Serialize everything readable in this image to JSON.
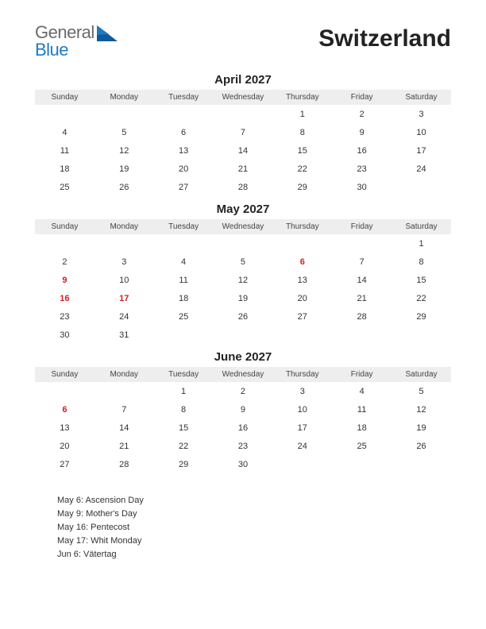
{
  "logo": {
    "word1": "General",
    "word2": "Blue"
  },
  "country_title": "Switzerland",
  "day_headers": [
    "Sunday",
    "Monday",
    "Tuesday",
    "Wednesday",
    "Thursday",
    "Friday",
    "Saturday"
  ],
  "colors": {
    "logo_gray": "#6a6a6a",
    "logo_blue": "#1a7bc4",
    "logo_triangle": "#0d5a9c",
    "header_bg": "#eeeeee",
    "text": "#333333",
    "holiday": "#d02020",
    "background": "#ffffff"
  },
  "typography": {
    "country_fontsize": 30,
    "month_fontsize": 15,
    "day_header_fontsize": 10,
    "cell_fontsize": 11,
    "holiday_list_fontsize": 11
  },
  "months": [
    {
      "title": "April 2027",
      "weeks": [
        [
          null,
          null,
          null,
          null,
          {
            "d": 1
          },
          {
            "d": 2
          },
          {
            "d": 3
          }
        ],
        [
          {
            "d": 4
          },
          {
            "d": 5
          },
          {
            "d": 6
          },
          {
            "d": 7
          },
          {
            "d": 8
          },
          {
            "d": 9
          },
          {
            "d": 10
          }
        ],
        [
          {
            "d": 11
          },
          {
            "d": 12
          },
          {
            "d": 13
          },
          {
            "d": 14
          },
          {
            "d": 15
          },
          {
            "d": 16
          },
          {
            "d": 17
          }
        ],
        [
          {
            "d": 18
          },
          {
            "d": 19
          },
          {
            "d": 20
          },
          {
            "d": 21
          },
          {
            "d": 22
          },
          {
            "d": 23
          },
          {
            "d": 24
          }
        ],
        [
          {
            "d": 25
          },
          {
            "d": 26
          },
          {
            "d": 27
          },
          {
            "d": 28
          },
          {
            "d": 29
          },
          {
            "d": 30
          },
          null
        ]
      ]
    },
    {
      "title": "May 2027",
      "weeks": [
        [
          null,
          null,
          null,
          null,
          null,
          null,
          {
            "d": 1
          }
        ],
        [
          {
            "d": 2
          },
          {
            "d": 3
          },
          {
            "d": 4
          },
          {
            "d": 5
          },
          {
            "d": 6,
            "h": true
          },
          {
            "d": 7
          },
          {
            "d": 8
          }
        ],
        [
          {
            "d": 9,
            "h": true
          },
          {
            "d": 10
          },
          {
            "d": 11
          },
          {
            "d": 12
          },
          {
            "d": 13
          },
          {
            "d": 14
          },
          {
            "d": 15
          }
        ],
        [
          {
            "d": 16,
            "h": true
          },
          {
            "d": 17,
            "h": true
          },
          {
            "d": 18
          },
          {
            "d": 19
          },
          {
            "d": 20
          },
          {
            "d": 21
          },
          {
            "d": 22
          }
        ],
        [
          {
            "d": 23
          },
          {
            "d": 24
          },
          {
            "d": 25
          },
          {
            "d": 26
          },
          {
            "d": 27
          },
          {
            "d": 28
          },
          {
            "d": 29
          }
        ],
        [
          {
            "d": 30
          },
          {
            "d": 31
          },
          null,
          null,
          null,
          null,
          null
        ]
      ]
    },
    {
      "title": "June 2027",
      "weeks": [
        [
          null,
          null,
          {
            "d": 1
          },
          {
            "d": 2
          },
          {
            "d": 3
          },
          {
            "d": 4
          },
          {
            "d": 5
          }
        ],
        [
          {
            "d": 6,
            "h": true
          },
          {
            "d": 7
          },
          {
            "d": 8
          },
          {
            "d": 9
          },
          {
            "d": 10
          },
          {
            "d": 11
          },
          {
            "d": 12
          }
        ],
        [
          {
            "d": 13
          },
          {
            "d": 14
          },
          {
            "d": 15
          },
          {
            "d": 16
          },
          {
            "d": 17
          },
          {
            "d": 18
          },
          {
            "d": 19
          }
        ],
        [
          {
            "d": 20
          },
          {
            "d": 21
          },
          {
            "d": 22
          },
          {
            "d": 23
          },
          {
            "d": 24
          },
          {
            "d": 25
          },
          {
            "d": 26
          }
        ],
        [
          {
            "d": 27
          },
          {
            "d": 28
          },
          {
            "d": 29
          },
          {
            "d": 30
          },
          null,
          null,
          null
        ]
      ]
    }
  ],
  "holidays": [
    "May 6: Ascension Day",
    "May 9: Mother's Day",
    "May 16: Pentecost",
    "May 17: Whit Monday",
    "Jun 6: Vätertag"
  ]
}
